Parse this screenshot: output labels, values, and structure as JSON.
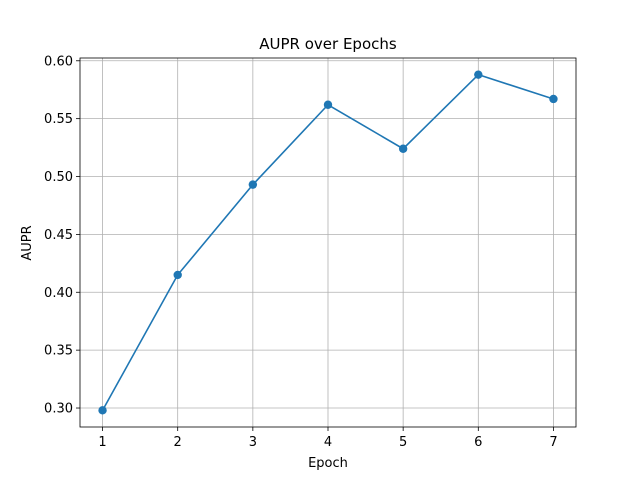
{
  "chart_data": {
    "type": "line",
    "title": "AUPR over Epochs",
    "xlabel": "Epoch",
    "ylabel": "AUPR",
    "x": [
      1,
      2,
      3,
      4,
      5,
      6,
      7
    ],
    "series": [
      {
        "values": [
          0.298,
          0.415,
          0.493,
          0.562,
          0.524,
          0.588,
          0.567
        ],
        "color": "#1f77b4",
        "marker": "circle"
      }
    ],
    "xlim": [
      0.7,
      7.3
    ],
    "ylim": [
      0.2836,
      0.6024
    ],
    "xticks": [
      "1",
      "2",
      "3",
      "4",
      "5",
      "6",
      "7"
    ],
    "yticks": [
      "0.30",
      "0.35",
      "0.40",
      "0.45",
      "0.50",
      "0.55",
      "0.60"
    ],
    "grid": true,
    "legend": "none"
  }
}
